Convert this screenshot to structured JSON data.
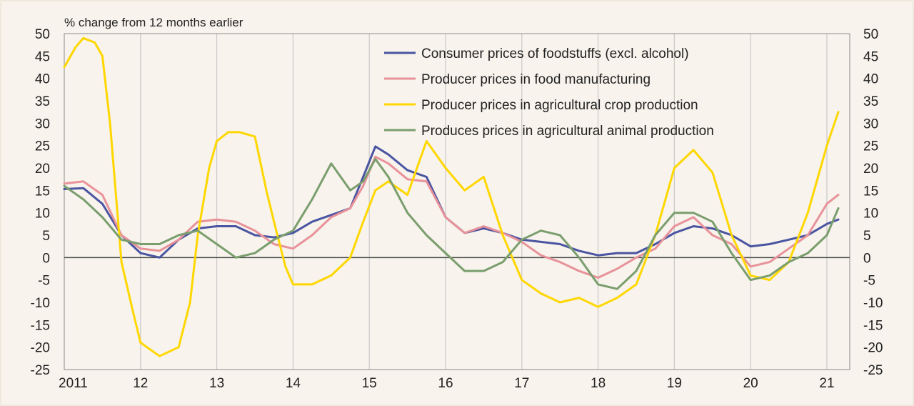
{
  "chart_data": {
    "type": "line",
    "ylabel": "% change from 12 months earlier",
    "ylim": [
      -25,
      50
    ],
    "yticks": [
      -25,
      -20,
      -15,
      -10,
      -5,
      0,
      5,
      10,
      15,
      20,
      25,
      30,
      35,
      40,
      45,
      50
    ],
    "xlim": [
      2011,
      2021.3
    ],
    "xticks": [
      {
        "value": 2011,
        "label": "2011"
      },
      {
        "value": 2012,
        "label": "12"
      },
      {
        "value": 2013,
        "label": "13"
      },
      {
        "value": 2014,
        "label": "14"
      },
      {
        "value": 2015,
        "label": "15"
      },
      {
        "value": 2016,
        "label": "16"
      },
      {
        "value": 2017,
        "label": "17"
      },
      {
        "value": 2018,
        "label": "18"
      },
      {
        "value": 2019,
        "label": "19"
      },
      {
        "value": 2020,
        "label": "20"
      },
      {
        "value": 2021,
        "label": "21"
      }
    ],
    "grid": {
      "vertical": true,
      "horizontal": false
    },
    "legend_position": "top-right",
    "series": [
      {
        "name": "Consumer prices of foodstuffs (excl. alcohol)",
        "color": "#4a55a2",
        "points": [
          [
            2011,
            15.3
          ],
          [
            2011.25,
            15.5
          ],
          [
            2011.5,
            12
          ],
          [
            2011.75,
            5
          ],
          [
            2012,
            1
          ],
          [
            2012.25,
            0
          ],
          [
            2012.5,
            4
          ],
          [
            2012.75,
            6.5
          ],
          [
            2013,
            7
          ],
          [
            2013.25,
            7
          ],
          [
            2013.5,
            5
          ],
          [
            2013.75,
            4.5
          ],
          [
            2014,
            5.5
          ],
          [
            2014.25,
            8
          ],
          [
            2014.5,
            9.5
          ],
          [
            2014.75,
            11
          ],
          [
            2014.92,
            18
          ],
          [
            2015.08,
            24.8
          ],
          [
            2015.25,
            23
          ],
          [
            2015.5,
            19.5
          ],
          [
            2015.75,
            18
          ],
          [
            2016,
            9
          ],
          [
            2016.25,
            5.5
          ],
          [
            2016.5,
            6.5
          ],
          [
            2016.75,
            5.5
          ],
          [
            2017,
            4
          ],
          [
            2017.25,
            3.5
          ],
          [
            2017.5,
            3
          ],
          [
            2017.75,
            1.5
          ],
          [
            2018,
            0.5
          ],
          [
            2018.25,
            1
          ],
          [
            2018.5,
            1
          ],
          [
            2018.75,
            3
          ],
          [
            2019,
            5.5
          ],
          [
            2019.25,
            7
          ],
          [
            2019.5,
            6.5
          ],
          [
            2019.75,
            5
          ],
          [
            2020,
            2.5
          ],
          [
            2020.25,
            3
          ],
          [
            2020.5,
            4
          ],
          [
            2020.75,
            5
          ],
          [
            2021,
            7.5
          ],
          [
            2021.15,
            8.5
          ]
        ]
      },
      {
        "name": "Producer prices in food manufacturing",
        "color": "#e8929a",
        "points": [
          [
            2011,
            16.5
          ],
          [
            2011.25,
            17
          ],
          [
            2011.5,
            14
          ],
          [
            2011.75,
            5
          ],
          [
            2012,
            2
          ],
          [
            2012.25,
            1.5
          ],
          [
            2012.5,
            4
          ],
          [
            2012.75,
            8
          ],
          [
            2013,
            8.5
          ],
          [
            2013.25,
            8
          ],
          [
            2013.5,
            6
          ],
          [
            2013.75,
            3
          ],
          [
            2014,
            2
          ],
          [
            2014.25,
            5
          ],
          [
            2014.5,
            9
          ],
          [
            2014.75,
            11
          ],
          [
            2014.92,
            16
          ],
          [
            2015.08,
            22.5
          ],
          [
            2015.25,
            21
          ],
          [
            2015.5,
            17.5
          ],
          [
            2015.75,
            17
          ],
          [
            2016,
            9
          ],
          [
            2016.25,
            5.5
          ],
          [
            2016.5,
            7
          ],
          [
            2016.75,
            5.5
          ],
          [
            2017,
            3.5
          ],
          [
            2017.25,
            0.5
          ],
          [
            2017.5,
            -1
          ],
          [
            2017.75,
            -3
          ],
          [
            2018,
            -4.5
          ],
          [
            2018.25,
            -2.5
          ],
          [
            2018.5,
            0
          ],
          [
            2018.75,
            2
          ],
          [
            2019,
            7
          ],
          [
            2019.25,
            9
          ],
          [
            2019.5,
            5
          ],
          [
            2019.75,
            3
          ],
          [
            2020,
            -2
          ],
          [
            2020.25,
            -1
          ],
          [
            2020.5,
            2
          ],
          [
            2020.75,
            5
          ],
          [
            2021,
            12
          ],
          [
            2021.15,
            14
          ]
        ]
      },
      {
        "name": "Producer prices in agricultural crop production",
        "color": "#ffd700",
        "points": [
          [
            2011,
            42.5
          ],
          [
            2011.15,
            47
          ],
          [
            2011.25,
            49
          ],
          [
            2011.4,
            48
          ],
          [
            2011.5,
            45
          ],
          [
            2011.6,
            30
          ],
          [
            2011.75,
            -1
          ],
          [
            2011.9,
            -12
          ],
          [
            2012,
            -19
          ],
          [
            2012.25,
            -22
          ],
          [
            2012.5,
            -20
          ],
          [
            2012.65,
            -10
          ],
          [
            2012.75,
            5
          ],
          [
            2012.9,
            20
          ],
          [
            2013,
            26
          ],
          [
            2013.15,
            28
          ],
          [
            2013.3,
            28
          ],
          [
            2013.5,
            27
          ],
          [
            2013.65,
            15
          ],
          [
            2013.75,
            8
          ],
          [
            2013.9,
            -2
          ],
          [
            2014,
            -6
          ],
          [
            2014.25,
            -6
          ],
          [
            2014.5,
            -4
          ],
          [
            2014.75,
            0
          ],
          [
            2014.92,
            8
          ],
          [
            2015.08,
            15
          ],
          [
            2015.25,
            17
          ],
          [
            2015.5,
            14
          ],
          [
            2015.75,
            26
          ],
          [
            2016,
            20
          ],
          [
            2016.25,
            15
          ],
          [
            2016.5,
            18
          ],
          [
            2016.75,
            5
          ],
          [
            2017,
            -5
          ],
          [
            2017.25,
            -8
          ],
          [
            2017.5,
            -10
          ],
          [
            2017.75,
            -9
          ],
          [
            2018,
            -11
          ],
          [
            2018.25,
            -9
          ],
          [
            2018.5,
            -6
          ],
          [
            2018.75,
            5
          ],
          [
            2019,
            20
          ],
          [
            2019.25,
            24
          ],
          [
            2019.5,
            19
          ],
          [
            2019.75,
            5
          ],
          [
            2020,
            -4
          ],
          [
            2020.25,
            -5
          ],
          [
            2020.5,
            -1
          ],
          [
            2020.75,
            10
          ],
          [
            2021,
            25
          ],
          [
            2021.15,
            32.5
          ]
        ]
      },
      {
        "name": "Produces prices in agricultural animal production",
        "color": "#7a9e6e",
        "points": [
          [
            2011,
            16
          ],
          [
            2011.25,
            13
          ],
          [
            2011.5,
            9
          ],
          [
            2011.75,
            4
          ],
          [
            2012,
            3
          ],
          [
            2012.25,
            3
          ],
          [
            2012.5,
            5
          ],
          [
            2012.75,
            6
          ],
          [
            2013,
            3
          ],
          [
            2013.25,
            0
          ],
          [
            2013.5,
            1
          ],
          [
            2013.75,
            4
          ],
          [
            2014,
            6
          ],
          [
            2014.25,
            13
          ],
          [
            2014.5,
            21
          ],
          [
            2014.75,
            15
          ],
          [
            2014.92,
            17
          ],
          [
            2015.08,
            22
          ],
          [
            2015.25,
            18
          ],
          [
            2015.5,
            10
          ],
          [
            2015.75,
            5
          ],
          [
            2016,
            1
          ],
          [
            2016.25,
            -3
          ],
          [
            2016.5,
            -3
          ],
          [
            2016.75,
            -1
          ],
          [
            2017,
            4
          ],
          [
            2017.25,
            6
          ],
          [
            2017.5,
            5
          ],
          [
            2017.75,
            0
          ],
          [
            2018,
            -6
          ],
          [
            2018.25,
            -7
          ],
          [
            2018.5,
            -3
          ],
          [
            2018.75,
            5
          ],
          [
            2019,
            10
          ],
          [
            2019.25,
            10
          ],
          [
            2019.5,
            8
          ],
          [
            2019.75,
            1
          ],
          [
            2020,
            -5
          ],
          [
            2020.25,
            -4
          ],
          [
            2020.5,
            -1
          ],
          [
            2020.75,
            1
          ],
          [
            2021,
            5
          ],
          [
            2021.15,
            11
          ]
        ]
      }
    ]
  }
}
